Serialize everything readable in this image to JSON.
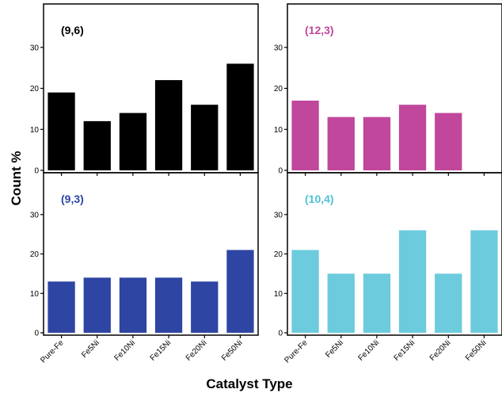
{
  "figure": {
    "xlabel": "Catalyst Type",
    "ylabel": "Count %"
  },
  "chart_data": [
    {
      "type": "bar",
      "panel_label": "(9,6)",
      "color": "#000000",
      "label_color": "#000000",
      "categories": [
        "Pure-Fe",
        "Fe5Ni",
        "Fe10Ni",
        "Fe15Ni",
        "Fe20Ni",
        "Fe50Ni"
      ],
      "values": [
        19,
        12,
        14,
        22,
        16,
        26
      ],
      "yticks": [
        "0",
        "10",
        "20",
        "30"
      ],
      "ylim": [
        0,
        40
      ]
    },
    {
      "type": "bar",
      "panel_label": "(12,3)",
      "color": "#c0479b",
      "label_color": "#c0479b",
      "categories": [
        "Pure-Fe",
        "Fe5Ni",
        "Fe10Ni",
        "Fe15Ni",
        "Fe20Ni",
        "Fe50Ni"
      ],
      "values": [
        17,
        13,
        13,
        16,
        14,
        0
      ],
      "yticks": [
        "0",
        "10",
        "20",
        "30"
      ],
      "ylim": [
        0,
        40
      ]
    },
    {
      "type": "bar",
      "panel_label": "(9,3)",
      "color": "#2e45a3",
      "label_color": "#2e45a3",
      "categories": [
        "Pure-Fe",
        "Fe5Ni",
        "Fe10Ni",
        "Fe15Ni",
        "Fe20Ni",
        "Fe50Ni"
      ],
      "values": [
        13,
        14,
        14,
        14,
        13,
        21
      ],
      "yticks": [
        "0",
        "10",
        "20",
        "30"
      ],
      "ylim": [
        0,
        40
      ]
    },
    {
      "type": "bar",
      "panel_label": "(10,4)",
      "color": "#6ccbdc",
      "label_color": "#4fc3d6",
      "categories": [
        "Pure-Fe",
        "Fe5Ni",
        "Fe10Ni",
        "Fe15Ni",
        "Fe20Ni",
        "Fe50Ni"
      ],
      "values": [
        21,
        15,
        15,
        26,
        15,
        26
      ],
      "yticks": [
        "0",
        "10",
        "20",
        "30"
      ],
      "ylim": [
        0,
        40
      ]
    }
  ]
}
